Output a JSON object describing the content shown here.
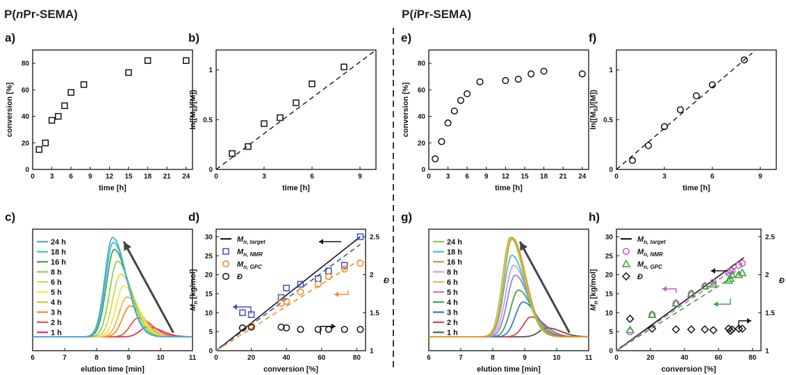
{
  "figure": {
    "left_title_pre": "P(",
    "left_title_ital": "n",
    "left_title_post": "Pr-SEMA)",
    "right_title_pre": "P(",
    "right_title_ital": "i",
    "right_title_post": "Pr-SEMA)"
  },
  "colors": {
    "black": "#111111",
    "nmr_left": "#3a4fb5",
    "gpc_left": "#f08a24",
    "nmr_right": "#c35bc4",
    "gpc_right": "#3aa13a",
    "dispersity": "#111111"
  },
  "chart_data": [
    {
      "id": "a",
      "panel_label": "a)",
      "type": "scatter",
      "xlabel": "time [h]",
      "ylabel": "conversion [%]",
      "xlim": [
        0,
        25
      ],
      "ylim": [
        0,
        90
      ],
      "xticks": [
        0,
        3,
        6,
        9,
        12,
        15,
        18,
        21,
        24
      ],
      "yticks": [
        0,
        20,
        40,
        60,
        80
      ],
      "series": [
        {
          "marker": "square",
          "x": [
            1,
            2,
            3,
            4,
            5,
            6,
            8,
            15,
            18,
            24
          ],
          "y": [
            15,
            20,
            37,
            40,
            48,
            58,
            64,
            73,
            82,
            82
          ]
        }
      ]
    },
    {
      "id": "b",
      "panel_label": "b)",
      "type": "scatter",
      "xlabel": "time [h]",
      "ylabel": "ln([M0]/[M])",
      "ylabel_parts": [
        "ln([M",
        "0",
        "]/[M])"
      ],
      "xlim": [
        0,
        10
      ],
      "ylim": [
        0,
        1.2
      ],
      "xticks": [
        0,
        3,
        6,
        9
      ],
      "yticks": [
        0,
        0.5,
        1
      ],
      "ytick_labels": [
        "0",
        "0.5",
        "1"
      ],
      "series": [
        {
          "marker": "square",
          "x": [
            1,
            2,
            3,
            4,
            5,
            6,
            8
          ],
          "y": [
            0.16,
            0.23,
            0.46,
            0.52,
            0.67,
            0.86,
            1.03
          ]
        }
      ],
      "fit_line": {
        "x": [
          0,
          10
        ],
        "y": [
          0,
          1.28
        ]
      }
    },
    {
      "id": "c",
      "panel_label": "c)",
      "type": "line",
      "xlabel": "elution time [min]",
      "xlim": [
        6,
        11
      ],
      "xticks": [
        6,
        7,
        8,
        9,
        10,
        11
      ],
      "series": [
        {
          "name": "24 h",
          "color": "#4ea9d9",
          "peak_x": 8.5,
          "height": 1.0
        },
        {
          "name": "18 h",
          "color": "#3fc0c6",
          "peak_x": 8.52,
          "height": 0.95
        },
        {
          "name": "16 h",
          "color": "#3aa35a",
          "peak_x": 8.55,
          "height": 0.88
        },
        {
          "name": "8 h",
          "color": "#8ccf4a",
          "peak_x": 8.65,
          "height": 0.76
        },
        {
          "name": "6 h",
          "color": "#c8e04c",
          "peak_x": 8.75,
          "height": 0.63
        },
        {
          "name": "5 h",
          "color": "#f5e450",
          "peak_x": 8.85,
          "height": 0.51
        },
        {
          "name": "4 h",
          "color": "#f6b340",
          "peak_x": 8.95,
          "height": 0.4
        },
        {
          "name": "3 h",
          "color": "#f28c28",
          "peak_x": 9.05,
          "height": 0.31
        },
        {
          "name": "2 h",
          "color": "#e8553a",
          "peak_x": 9.3,
          "height": 0.19
        },
        {
          "name": "1 h",
          "color": "#e02a6a",
          "peak_x": 9.6,
          "height": 0.1
        }
      ]
    },
    {
      "id": "d",
      "panel_label": "d)",
      "type": "scatter",
      "xlabel": "conversion [%]",
      "ylabel": "Mn [kg/mol]",
      "y2label": "Đ",
      "xlim": [
        0,
        85
      ],
      "ylim": [
        0,
        32
      ],
      "y2lim": [
        1,
        2.6
      ],
      "xticks": [
        0,
        20,
        40,
        60,
        80
      ],
      "yticks": [
        0,
        5,
        10,
        15,
        20,
        25,
        30
      ],
      "y2ticks": [
        1,
        1.5,
        2,
        2.5
      ],
      "y2tick_labels": [
        "1",
        "1.5",
        "2",
        "2.5"
      ],
      "legend": [
        {
          "label": "Mn, target",
          "sub": "n, target",
          "marker": "line",
          "color": "#111111"
        },
        {
          "label": "Mn, NMR",
          "sub": "n, NMR",
          "marker": "square",
          "color": "#3a4fb5"
        },
        {
          "label": "Mn, GPC",
          "sub": "n, GPC",
          "marker": "circle",
          "color": "#f08a24"
        },
        {
          "label": "Đ",
          "sub": "",
          "marker": "circle",
          "color": "#111111"
        }
      ],
      "target_line": {
        "x": [
          0,
          82
        ],
        "y": [
          0,
          30
        ]
      },
      "nmr": {
        "x": [
          15,
          20,
          37,
          40,
          48,
          58,
          64,
          73,
          82
        ],
        "y": [
          10,
          9.5,
          14,
          16.5,
          17.5,
          19,
          21,
          22.5,
          30
        ]
      },
      "nmr_fit": {
        "x": [
          0,
          82
        ],
        "y": [
          0,
          28
        ]
      },
      "gpc": {
        "x": [
          15,
          20,
          37,
          40,
          48,
          58,
          64,
          73,
          82
        ],
        "y": [
          6,
          6.5,
          12.5,
          13,
          15.5,
          17.5,
          19.5,
          21.5,
          23
        ]
      },
      "gpc_fit": {
        "x": [
          0,
          82
        ],
        "y": [
          0,
          24
        ]
      },
      "disp": {
        "x": [
          15,
          20,
          37,
          40,
          48,
          58,
          64,
          73,
          82
        ],
        "y": [
          1.3,
          1.31,
          1.31,
          1.3,
          1.28,
          1.28,
          1.28,
          1.28,
          1.28
        ]
      }
    },
    {
      "id": "e",
      "panel_label": "e)",
      "type": "scatter",
      "xlabel": "time [h]",
      "ylabel": "conversion [%]",
      "xlim": [
        0,
        25
      ],
      "ylim": [
        0,
        90
      ],
      "xticks": [
        0,
        3,
        6,
        9,
        12,
        15,
        18,
        21,
        24
      ],
      "yticks": [
        0,
        20,
        40,
        60,
        80
      ],
      "series": [
        {
          "marker": "circle",
          "x": [
            1,
            2,
            3,
            4,
            5,
            6,
            8,
            12,
            14,
            16,
            18,
            24
          ],
          "y": [
            8,
            21,
            35,
            44,
            52,
            57,
            66,
            67,
            68,
            72,
            74,
            72
          ]
        }
      ]
    },
    {
      "id": "f",
      "panel_label": "f)",
      "type": "scatter",
      "xlabel": "time [h]",
      "ylabel": "ln([M0]/[M])",
      "ylabel_parts": [
        "ln([M",
        "0",
        "]/[M])"
      ],
      "xlim": [
        0,
        10
      ],
      "ylim": [
        0,
        1.2
      ],
      "xticks": [
        0,
        3,
        6,
        9
      ],
      "yticks": [
        0,
        0.5,
        1
      ],
      "ytick_labels": [
        "0",
        "0.5",
        "1"
      ],
      "series": [
        {
          "marker": "circle",
          "x": [
            1,
            2,
            3,
            4,
            5,
            6,
            8
          ],
          "y": [
            0.09,
            0.24,
            0.43,
            0.6,
            0.74,
            0.85,
            1.1
          ]
        }
      ],
      "fit_line": {
        "x": [
          0,
          8.5
        ],
        "y": [
          0,
          1.17
        ]
      }
    },
    {
      "id": "g",
      "panel_label": "g)",
      "type": "line",
      "xlabel": "elution time [min]",
      "xlim": [
        6,
        11
      ],
      "xticks": [
        6,
        7,
        8,
        9,
        10,
        11
      ],
      "series": [
        {
          "name": "24 h",
          "color": "#8ccf4a",
          "peak_x": 8.55,
          "height": 1.0
        },
        {
          "name": "18 h",
          "color": "#3fc0c6",
          "peak_x": 8.6,
          "height": 0.82
        },
        {
          "name": "16 h",
          "color": "#f28c28",
          "peak_x": 8.6,
          "height": 1.0
        },
        {
          "name": "8 h",
          "color": "#c8a0e0",
          "peak_x": 8.65,
          "height": 0.72
        },
        {
          "name": "6 h",
          "color": "#f6b340",
          "peak_x": 8.6,
          "height": 0.98
        },
        {
          "name": "5 h",
          "color": "#a77ad0",
          "peak_x": 8.7,
          "height": 0.62
        },
        {
          "name": "4 h",
          "color": "#3aa35a",
          "peak_x": 8.8,
          "height": 0.47
        },
        {
          "name": "3 h",
          "color": "#3a76c8",
          "peak_x": 8.95,
          "height": 0.35
        },
        {
          "name": "2 h",
          "color": "#e04040",
          "peak_x": 9.2,
          "height": 0.2
        },
        {
          "name": "1 h",
          "color": "#555555",
          "peak_x": 9.7,
          "height": 0.09
        }
      ]
    },
    {
      "id": "h",
      "panel_label": "h)",
      "type": "scatter",
      "xlabel": "conversion [%]",
      "ylabel": "Mn [kg/mol]",
      "y2label": "Đ",
      "xlim": [
        0,
        85
      ],
      "ylim": [
        0,
        32
      ],
      "y2lim": [
        1,
        2.6
      ],
      "xticks": [
        0,
        20,
        40,
        60,
        80
      ],
      "yticks": [
        0,
        5,
        10,
        15,
        20,
        25,
        30
      ],
      "y2ticks": [
        1,
        1.5,
        2,
        2.5
      ],
      "y2tick_labels": [
        "1",
        "1.5",
        "2",
        "2.5"
      ],
      "legend": [
        {
          "label": "Mn, target",
          "sub": "n, target",
          "marker": "line",
          "color": "#111111"
        },
        {
          "label": "Mn, NMR",
          "sub": "n, NMR",
          "marker": "circle",
          "color": "#c35bc4"
        },
        {
          "label": "Mn, GPC",
          "sub": "n, GPC",
          "marker": "triangle",
          "color": "#3aa13a"
        },
        {
          "label": "Đ",
          "sub": "",
          "marker": "diamond",
          "color": "#111111"
        }
      ],
      "target_line": {
        "x": [
          0,
          75
        ],
        "y": [
          0,
          24.5
        ]
      },
      "nmr": {
        "x": [
          8,
          21,
          35,
          44,
          52,
          57,
          66,
          67,
          68,
          72,
          74
        ],
        "y": [
          5,
          9.5,
          12.5,
          15,
          17,
          18,
          20.5,
          21,
          21,
          22.5,
          23
        ]
      },
      "nmr_fit": {
        "x": [
          0,
          74
        ],
        "y": [
          0,
          23
        ]
      },
      "gpc": {
        "x": [
          8,
          21,
          35,
          44,
          52,
          57,
          66,
          67,
          68,
          72,
          74
        ],
        "y": [
          5.5,
          9.5,
          12.5,
          15,
          17,
          17.5,
          18.5,
          19,
          20,
          20,
          20.5
        ]
      },
      "gpc_fit": {
        "x": [
          0,
          74
        ],
        "y": [
          0,
          21
        ]
      },
      "disp": {
        "x": [
          8,
          21,
          35,
          44,
          52,
          57,
          66,
          67,
          68,
          72,
          74
        ],
        "y": [
          1.42,
          1.29,
          1.28,
          1.28,
          1.28,
          1.27,
          1.29,
          1.26,
          1.28,
          1.29,
          1.29
        ]
      }
    }
  ]
}
